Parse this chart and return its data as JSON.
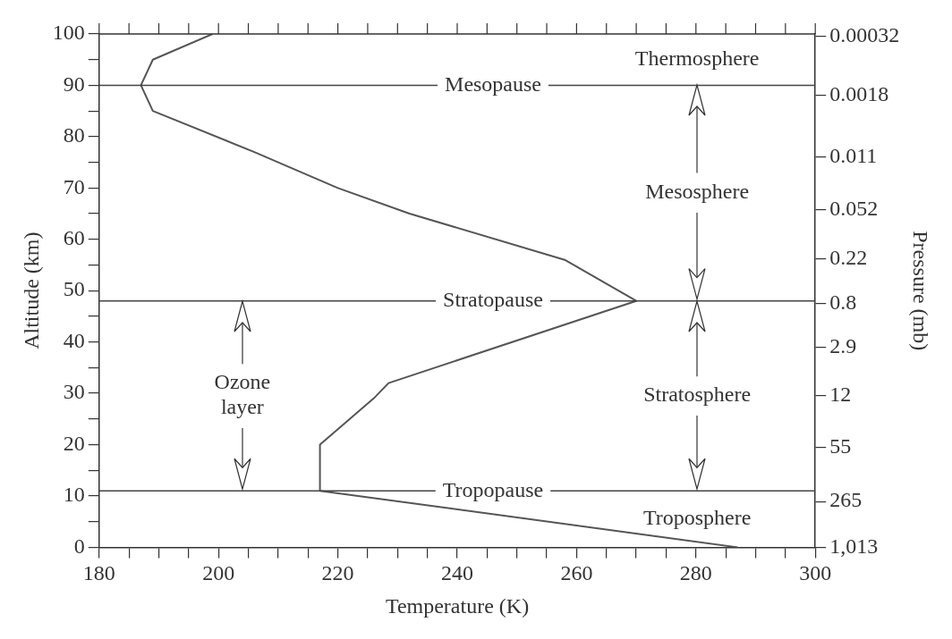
{
  "chart_data": {
    "type": "line",
    "xlabel": "Temperature (K)",
    "ylabel": "Altitude (km)",
    "y2label": "Pressure (mb)",
    "x": [
      287,
      217,
      217,
      226,
      228.5,
      270,
      258,
      232,
      220,
      206,
      189,
      187,
      189,
      199
    ],
    "values": [
      0,
      11,
      20,
      29,
      32,
      48,
      56,
      65,
      70,
      77,
      85,
      90,
      95,
      100
    ],
    "color": "#555555",
    "marker": "none",
    "line_style": "solid",
    "grid": false,
    "legend": false,
    "xlim": [
      180,
      300
    ],
    "xticks": [
      180,
      {
        "value": 185,
        "label": null
      },
      {
        "value": 190,
        "label": null
      },
      {
        "value": 195,
        "label": null
      },
      200,
      {
        "value": 205,
        "label": null
      },
      {
        "value": 210,
        "label": null
      },
      {
        "value": 215,
        "label": null
      },
      220,
      {
        "value": 225,
        "label": null
      },
      {
        "value": 230,
        "label": null
      },
      {
        "value": 235,
        "label": null
      },
      240,
      {
        "value": 245,
        "label": null
      },
      {
        "value": 250,
        "label": null
      },
      {
        "value": 255,
        "label": null
      },
      260,
      {
        "value": 265,
        "label": null
      },
      {
        "value": 270,
        "label": null
      },
      {
        "value": 275,
        "label": null
      },
      280,
      {
        "value": 285,
        "label": null
      },
      {
        "value": 290,
        "label": null
      },
      {
        "value": 295,
        "label": null
      },
      300
    ],
    "ylim": [
      0,
      100
    ],
    "yticks": [
      0,
      {
        "value": 5,
        "label": null
      },
      10,
      {
        "value": 15,
        "label": null
      },
      20,
      {
        "value": 25,
        "label": null
      },
      30,
      {
        "value": 35,
        "label": null
      },
      40,
      {
        "value": 45,
        "label": null
      },
      50,
      {
        "value": 55,
        "label": null
      },
      60,
      {
        "value": 65,
        "label": null
      },
      70,
      {
        "value": 75,
        "label": null
      },
      80,
      {
        "value": 85,
        "label": null
      },
      90,
      {
        "value": 95,
        "label": null
      },
      100
    ],
    "y2lim": [
      1013,
      0.00032
    ],
    "log": "y2",
    "y2ticks": [
      {
        "value": 1013,
        "label": "1,013"
      },
      265,
      55,
      12,
      2.9,
      0.8,
      0.22,
      0.052,
      0.011,
      0.0018,
      0.00032
    ],
    "ref_lines": [
      {
        "axis": "y",
        "value": 90,
        "label": "Mesopause",
        "color": "#444444"
      },
      {
        "axis": "y",
        "value": 48,
        "label": "Stratopause",
        "color": "#444444"
      },
      {
        "axis": "y",
        "value": 11,
        "label": "Tropopause",
        "color": "#444444"
      }
    ],
    "annotations": [
      "Thermosphere",
      "Mesosphere",
      "Stratosphere",
      "Troposphere",
      "Ozone layer"
    ]
  }
}
